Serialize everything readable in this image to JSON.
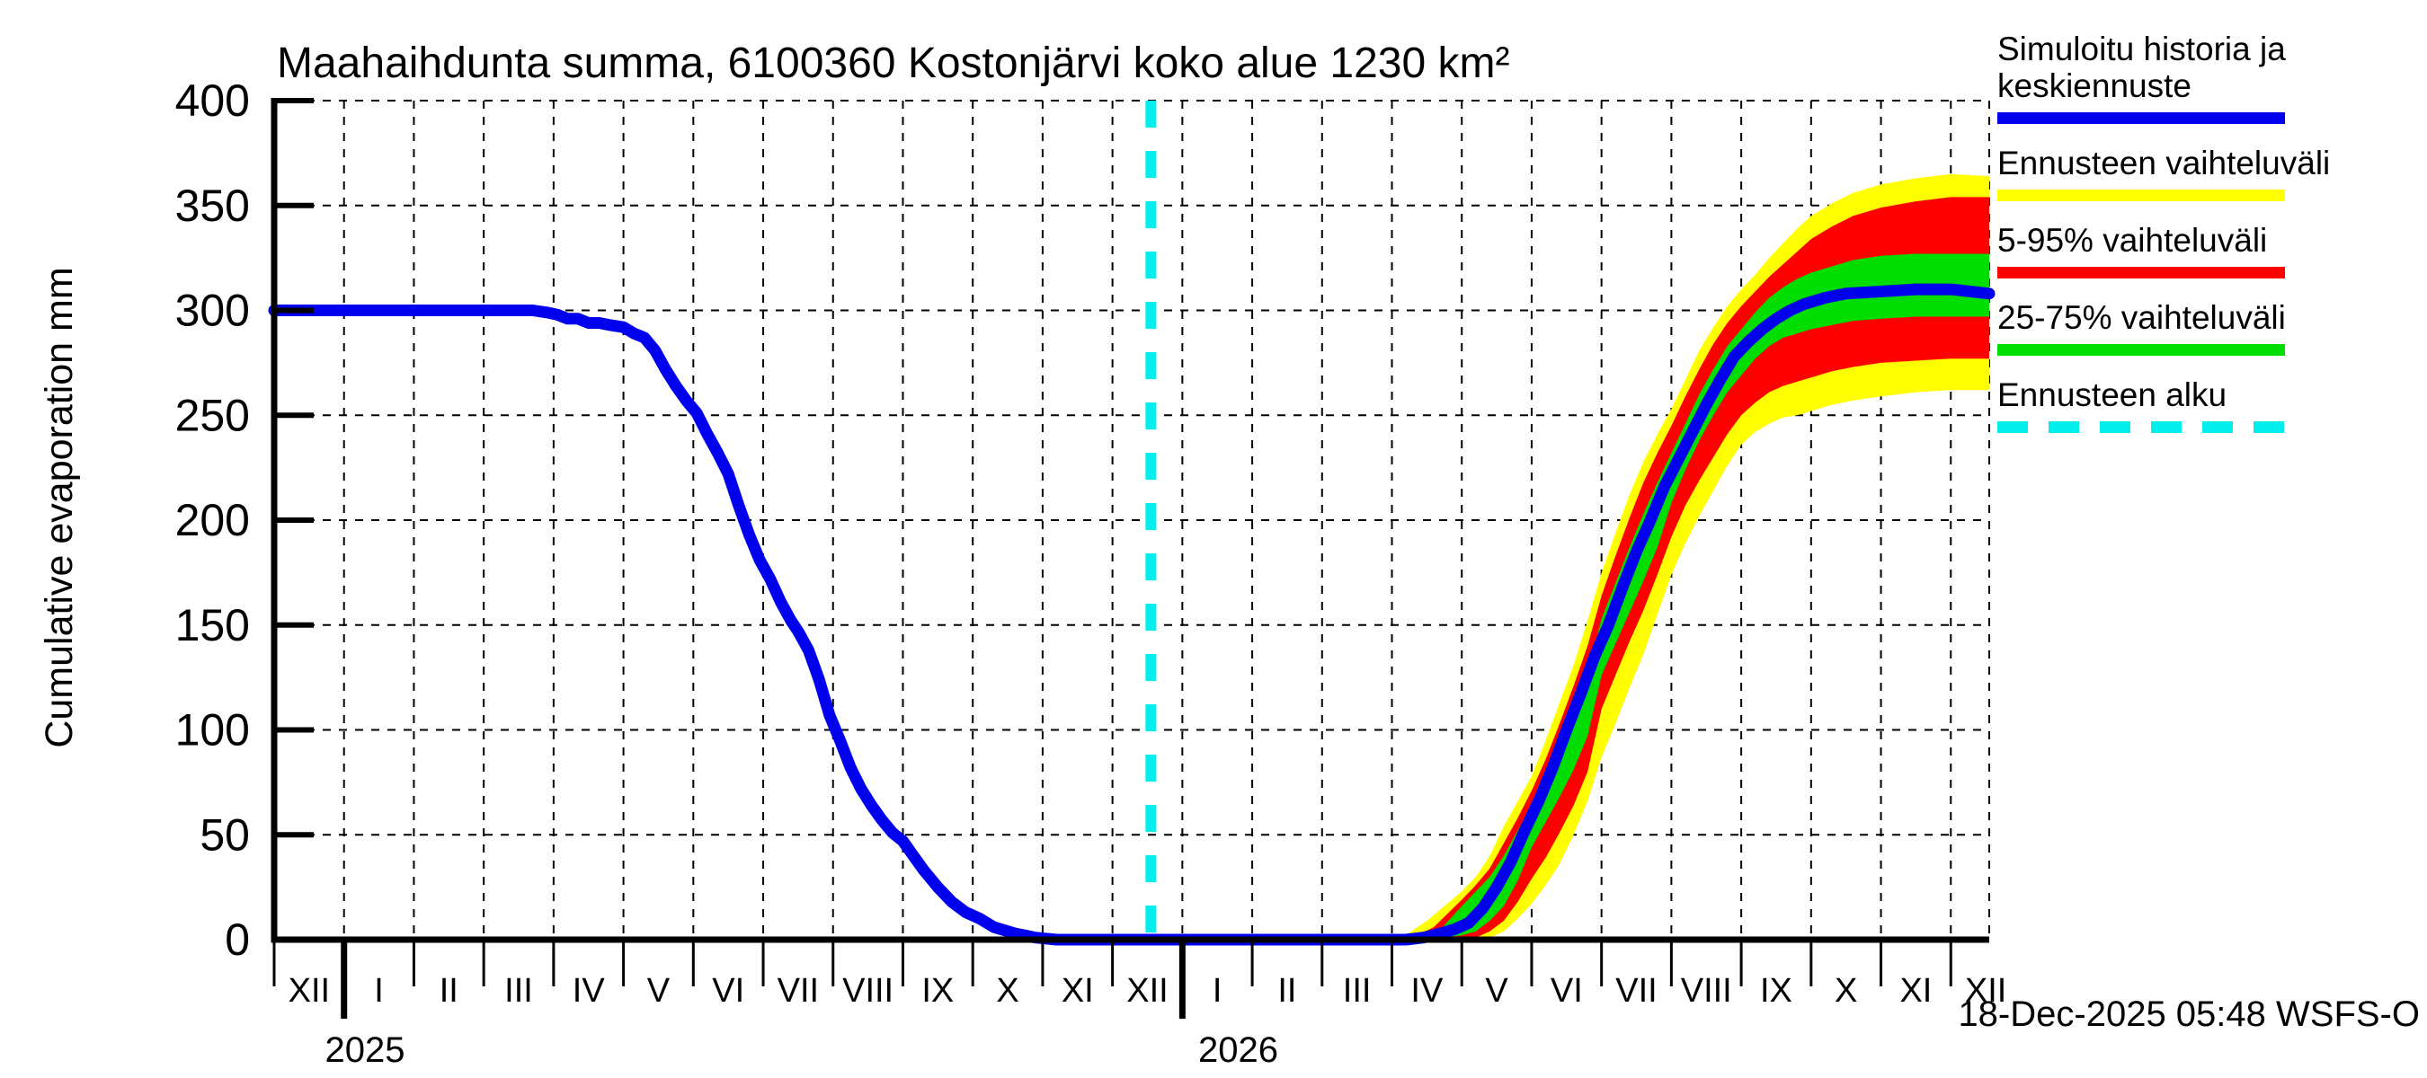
{
  "ui": {
    "title": "Maahaihdunta summa, 6100360 Kostonjärvi koko alue 1230 km²",
    "y_axis_label": "Cumulative evaporation  mm",
    "timestamp": "18-Dec-2025 05:48 WSFS-O",
    "legend": {
      "entries": [
        {
          "label": "Simuloitu historia ja keskiennuste",
          "color": "#0000ee",
          "dashed": false
        },
        {
          "label": "Ennusteen vaihteluväli",
          "color": "#ffff00",
          "dashed": false
        },
        {
          "label": "5-95% vaihteluväli",
          "color": "#ff0000",
          "dashed": false
        },
        {
          "label": "25-75% vaihteluväli",
          "color": "#00dd00",
          "dashed": false
        },
        {
          "label": "Ennusteen alku",
          "color": "#00eeee",
          "dashed": true
        }
      ]
    }
  },
  "chart_data": {
    "type": "line",
    "title": "Maahaihdunta summa, 6100360 Kostonjärvi koko alue 1230 km²",
    "xlabel": "",
    "ylabel": "Cumulative evaporation  mm",
    "ylim": [
      0,
      400
    ],
    "y_ticks": [
      0,
      50,
      100,
      150,
      200,
      250,
      300,
      350,
      400
    ],
    "grid": true,
    "legend_position": "outside-top-right",
    "x_months_total": 24.55,
    "x_axis": {
      "month_tick_labels": [
        "XII",
        "I",
        "II",
        "III",
        "IV",
        "V",
        "VI",
        "VII",
        "VIII",
        "IX",
        "X",
        "XI",
        "XII",
        "I",
        "II",
        "III",
        "IV",
        "V",
        "VI",
        "VII",
        "VIII",
        "IX",
        "X",
        "XI",
        "XII"
      ],
      "year_labels": [
        {
          "text": "2025",
          "t": 1.3
        },
        {
          "text": "2026",
          "t": 13.8
        }
      ],
      "note_t_units": "months since 1 Dec 2024"
    },
    "forecast_start": {
      "t": 12.55,
      "date": "18-Dec-2025",
      "label": "Ennusteen alku"
    },
    "colors": {
      "median": "#0000ee",
      "band_minmax": "#ffff00",
      "band_5_95": "#ff0000",
      "band_25_75": "#00dd00",
      "forecast_start_line": "#00eeee",
      "axis": "#000000"
    },
    "series": [
      {
        "name": "Simuloitu historia ja keskiennuste (historia)",
        "type": "line",
        "units": "mm",
        "points": [
          [
            0,
            300
          ],
          [
            0.6,
            300
          ],
          [
            1.2,
            300
          ],
          [
            1.8,
            300
          ],
          [
            2.4,
            300
          ],
          [
            3.0,
            300
          ],
          [
            3.4,
            300
          ],
          [
            3.7,
            300
          ],
          [
            3.9,
            299
          ],
          [
            4.05,
            298
          ],
          [
            4.2,
            296
          ],
          [
            4.35,
            296
          ],
          [
            4.5,
            294
          ],
          [
            4.65,
            294
          ],
          [
            4.8,
            293
          ],
          [
            5.0,
            292
          ],
          [
            5.15,
            289
          ],
          [
            5.3,
            287
          ],
          [
            5.45,
            281
          ],
          [
            5.6,
            272
          ],
          [
            5.75,
            264
          ],
          [
            5.9,
            257
          ],
          [
            6.05,
            251
          ],
          [
            6.2,
            241
          ],
          [
            6.35,
            232
          ],
          [
            6.5,
            222
          ],
          [
            6.65,
            207
          ],
          [
            6.8,
            193
          ],
          [
            6.95,
            181
          ],
          [
            7.1,
            172
          ],
          [
            7.25,
            161
          ],
          [
            7.4,
            152
          ],
          [
            7.5,
            147
          ],
          [
            7.65,
            138
          ],
          [
            7.8,
            124
          ],
          [
            7.95,
            107
          ],
          [
            8.1,
            95
          ],
          [
            8.25,
            82
          ],
          [
            8.4,
            72
          ],
          [
            8.55,
            64
          ],
          [
            8.7,
            57
          ],
          [
            8.85,
            51
          ],
          [
            9.0,
            47
          ],
          [
            9.15,
            40
          ],
          [
            9.3,
            33
          ],
          [
            9.5,
            25
          ],
          [
            9.7,
            18
          ],
          [
            9.9,
            13
          ],
          [
            10.1,
            10
          ],
          [
            10.3,
            6
          ],
          [
            10.6,
            3
          ],
          [
            10.9,
            1
          ],
          [
            11.2,
            0
          ],
          [
            12.0,
            0
          ],
          [
            12.55,
            0
          ]
        ]
      },
      {
        "name": "Simuloitu historia ja keskiennuste (keskiennuste)",
        "type": "line",
        "units": "mm",
        "points": [
          [
            12.55,
            0
          ],
          [
            13.5,
            0
          ],
          [
            14.5,
            0
          ],
          [
            15.5,
            0
          ],
          [
            16.2,
            0
          ],
          [
            16.45,
            1
          ],
          [
            16.7,
            3
          ],
          [
            16.9,
            5
          ],
          [
            17.1,
            8
          ],
          [
            17.3,
            15
          ],
          [
            17.5,
            25
          ],
          [
            17.7,
            37
          ],
          [
            17.9,
            52
          ],
          [
            18.1,
            66
          ],
          [
            18.3,
            82
          ],
          [
            18.5,
            100
          ],
          [
            18.7,
            117
          ],
          [
            18.9,
            135
          ],
          [
            19.1,
            150
          ],
          [
            19.3,
            168
          ],
          [
            19.5,
            185
          ],
          [
            19.7,
            200
          ],
          [
            19.9,
            216
          ],
          [
            20.1,
            229
          ],
          [
            20.3,
            242
          ],
          [
            20.5,
            255
          ],
          [
            20.7,
            267
          ],
          [
            20.9,
            278
          ],
          [
            21.1,
            285
          ],
          [
            21.3,
            291
          ],
          [
            21.5,
            296
          ],
          [
            21.7,
            300
          ],
          [
            21.9,
            303
          ],
          [
            22.2,
            306
          ],
          [
            22.5,
            308
          ],
          [
            23.0,
            309
          ],
          [
            23.5,
            310
          ],
          [
            24.0,
            310
          ],
          [
            24.55,
            308
          ]
        ]
      },
      {
        "name": "Ennusteen vaihteluväli (min-max)",
        "type": "band",
        "units": "mm",
        "points_t_lo_hi": [
          [
            16.1,
            0,
            0
          ],
          [
            16.5,
            0,
            9
          ],
          [
            17.0,
            0,
            23
          ],
          [
            17.2,
            0,
            30
          ],
          [
            17.4,
            1,
            40
          ],
          [
            17.6,
            4,
            54
          ],
          [
            17.8,
            10,
            66
          ],
          [
            18.0,
            17,
            78
          ],
          [
            18.2,
            26,
            95
          ],
          [
            18.4,
            36,
            113
          ],
          [
            18.6,
            50,
            131
          ],
          [
            18.8,
            66,
            152
          ],
          [
            19.0,
            87,
            175
          ],
          [
            19.2,
            103,
            194
          ],
          [
            19.4,
            120,
            212
          ],
          [
            19.6,
            136,
            228
          ],
          [
            19.8,
            155,
            241
          ],
          [
            20.0,
            174,
            253
          ],
          [
            20.2,
            189,
            267
          ],
          [
            20.4,
            202,
            281
          ],
          [
            20.6,
            214,
            292
          ],
          [
            20.8,
            226,
            302
          ],
          [
            21.0,
            236,
            310
          ],
          [
            21.2,
            242,
            317
          ],
          [
            21.4,
            246,
            325
          ],
          [
            21.6,
            249,
            332
          ],
          [
            21.8,
            250,
            339
          ],
          [
            22.0,
            252,
            345
          ],
          [
            22.3,
            255,
            351
          ],
          [
            22.6,
            257,
            356
          ],
          [
            23.0,
            259,
            360
          ],
          [
            23.5,
            261,
            363
          ],
          [
            24.0,
            262,
            365
          ],
          [
            24.55,
            262,
            364
          ]
        ]
      },
      {
        "name": "5-95% vaihteluväli",
        "type": "band",
        "units": "mm",
        "points_t_lo_hi": [
          [
            16.25,
            0,
            0
          ],
          [
            16.6,
            0,
            6
          ],
          [
            17.0,
            0,
            19
          ],
          [
            17.2,
            1,
            26
          ],
          [
            17.4,
            4,
            34
          ],
          [
            17.6,
            9,
            46
          ],
          [
            17.8,
            18,
            58
          ],
          [
            18.0,
            29,
            71
          ],
          [
            18.2,
            39,
            86
          ],
          [
            18.4,
            51,
            103
          ],
          [
            18.6,
            64,
            121
          ],
          [
            18.8,
            80,
            140
          ],
          [
            19.0,
            110,
            164
          ],
          [
            19.2,
            126,
            183
          ],
          [
            19.4,
            142,
            201
          ],
          [
            19.6,
            157,
            218
          ],
          [
            19.8,
            174,
            232
          ],
          [
            20.0,
            192,
            245
          ],
          [
            20.2,
            207,
            259
          ],
          [
            20.4,
            219,
            272
          ],
          [
            20.6,
            230,
            284
          ],
          [
            20.8,
            241,
            294
          ],
          [
            21.0,
            250,
            302
          ],
          [
            21.2,
            256,
            309
          ],
          [
            21.4,
            261,
            316
          ],
          [
            21.6,
            264,
            322
          ],
          [
            21.8,
            266,
            328
          ],
          [
            22.0,
            268,
            334
          ],
          [
            22.3,
            271,
            340
          ],
          [
            22.6,
            273,
            345
          ],
          [
            23.0,
            275,
            349
          ],
          [
            23.5,
            276,
            352
          ],
          [
            24.0,
            277,
            354
          ],
          [
            24.55,
            277,
            354
          ]
        ]
      },
      {
        "name": "25-75% vaihteluväli",
        "type": "band",
        "units": "mm",
        "points_t_lo_hi": [
          [
            16.4,
            0,
            0
          ],
          [
            16.7,
            1,
            5
          ],
          [
            17.0,
            2,
            16
          ],
          [
            17.2,
            4,
            23
          ],
          [
            17.4,
            9,
            30
          ],
          [
            17.6,
            16,
            40
          ],
          [
            17.8,
            28,
            52
          ],
          [
            18.0,
            44,
            64
          ],
          [
            18.2,
            56,
            78
          ],
          [
            18.4,
            68,
            93
          ],
          [
            18.6,
            81,
            110
          ],
          [
            18.8,
            97,
            127
          ],
          [
            19.0,
            126,
            153
          ],
          [
            19.2,
            141,
            170
          ],
          [
            19.4,
            156,
            187
          ],
          [
            19.6,
            171,
            203
          ],
          [
            19.8,
            187,
            218
          ],
          [
            20.0,
            208,
            232
          ],
          [
            20.2,
            224,
            246
          ],
          [
            20.4,
            238,
            260
          ],
          [
            20.6,
            250,
            272
          ],
          [
            20.8,
            261,
            283
          ],
          [
            21.0,
            269,
            291
          ],
          [
            21.2,
            277,
            299
          ],
          [
            21.4,
            283,
            306
          ],
          [
            21.6,
            287,
            311
          ],
          [
            21.8,
            289,
            315
          ],
          [
            22.0,
            291,
            318
          ],
          [
            22.3,
            293,
            321
          ],
          [
            22.6,
            295,
            324
          ],
          [
            23.0,
            296,
            326
          ],
          [
            23.5,
            297,
            327
          ],
          [
            24.0,
            297,
            327
          ],
          [
            24.55,
            297,
            327
          ]
        ]
      }
    ]
  }
}
